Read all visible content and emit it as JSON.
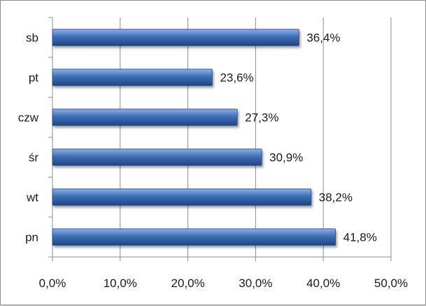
{
  "chart_data": {
    "type": "bar",
    "orientation": "horizontal",
    "categories": [
      "sb",
      "pt",
      "czw",
      "śr",
      "wt",
      "pn"
    ],
    "values": [
      36.4,
      23.6,
      27.3,
      30.9,
      38.2,
      41.8
    ],
    "data_labels": [
      "36,4%",
      "23,6%",
      "27,3%",
      "30,9%",
      "38,2%",
      "41,8%"
    ],
    "xlim": [
      0,
      50
    ],
    "x_ticks": [
      0,
      10,
      20,
      30,
      40,
      50
    ],
    "x_tick_labels": [
      "0,0%",
      "10,0%",
      "20,0%",
      "30,0%",
      "40,0%",
      "50,0%"
    ],
    "title": "",
    "xlabel": "",
    "ylabel": "",
    "grid": "vertical",
    "legend": "none",
    "bar_color": "#3f6fb5",
    "bar_color_light": "#8cb1e6",
    "bar_color_dark": "#1f4585"
  }
}
